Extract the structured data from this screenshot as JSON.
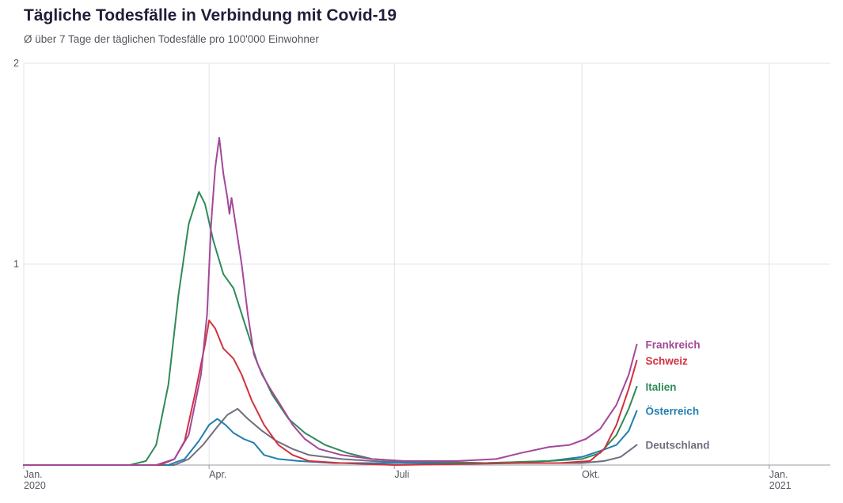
{
  "title": "Tägliche Todesfälle in Verbindung mit Covid-19",
  "subtitle": "Ø über 7 Tage der täglichen Todesfälle pro 100'000 Einwohner",
  "chart_data": {
    "type": "line",
    "title": "Tägliche Todesfälle in Verbindung mit Covid-19",
    "subtitle": "Ø über 7 Tage der täglichen Todesfälle pro 100'000 Einwohner",
    "xlabel": "",
    "ylabel": "",
    "xlim": [
      "2020-01-01",
      "2021-01-31"
    ],
    "ylim": [
      0,
      2
    ],
    "y_ticks": [
      {
        "value": 1,
        "label": "1"
      },
      {
        "value": 2,
        "label": "2"
      }
    ],
    "x_ticks": [
      {
        "date": "2020-01-01",
        "label": "Jan.",
        "sublabel": "2020"
      },
      {
        "date": "2020-04-01",
        "label": "Apr.",
        "sublabel": ""
      },
      {
        "date": "2020-07-01",
        "label": "Juli",
        "sublabel": ""
      },
      {
        "date": "2020-10-01",
        "label": "Okt.",
        "sublabel": ""
      },
      {
        "date": "2021-01-01",
        "label": "Jan.",
        "sublabel": "2021"
      }
    ],
    "grid": true,
    "legend": "labels at line ends (right)",
    "series": [
      {
        "name": "Frankreich",
        "color": "#a3489a",
        "points": [
          [
            "2020-01-01",
            0
          ],
          [
            "2020-03-06",
            0
          ],
          [
            "2020-03-15",
            0.03
          ],
          [
            "2020-03-22",
            0.15
          ],
          [
            "2020-03-28",
            0.45
          ],
          [
            "2020-03-31",
            0.75
          ],
          [
            "2020-04-02",
            1.2
          ],
          [
            "2020-04-04",
            1.48
          ],
          [
            "2020-04-06",
            1.63
          ],
          [
            "2020-04-08",
            1.45
          ],
          [
            "2020-04-10",
            1.33
          ],
          [
            "2020-04-11",
            1.25
          ],
          [
            "2020-04-12",
            1.33
          ],
          [
            "2020-04-14",
            1.2
          ],
          [
            "2020-04-17",
            1.0
          ],
          [
            "2020-04-20",
            0.75
          ],
          [
            "2020-04-23",
            0.55
          ],
          [
            "2020-04-27",
            0.45
          ],
          [
            "2020-05-01",
            0.38
          ],
          [
            "2020-05-06",
            0.3
          ],
          [
            "2020-05-12",
            0.2
          ],
          [
            "2020-05-18",
            0.13
          ],
          [
            "2020-05-25",
            0.08
          ],
          [
            "2020-06-05",
            0.05
          ],
          [
            "2020-06-20",
            0.03
          ],
          [
            "2020-07-05",
            0.02
          ],
          [
            "2020-08-01",
            0.02
          ],
          [
            "2020-08-20",
            0.03
          ],
          [
            "2020-09-01",
            0.06
          ],
          [
            "2020-09-15",
            0.09
          ],
          [
            "2020-09-25",
            0.1
          ],
          [
            "2020-10-03",
            0.13
          ],
          [
            "2020-10-10",
            0.18
          ],
          [
            "2020-10-18",
            0.3
          ],
          [
            "2020-10-24",
            0.45
          ],
          [
            "2020-10-28",
            0.6
          ]
        ]
      },
      {
        "name": "Schweiz",
        "color": "#d3313f",
        "points": [
          [
            "2020-01-01",
            0
          ],
          [
            "2020-03-08",
            0
          ],
          [
            "2020-03-15",
            0.03
          ],
          [
            "2020-03-20",
            0.12
          ],
          [
            "2020-03-25",
            0.35
          ],
          [
            "2020-03-30",
            0.6
          ],
          [
            "2020-04-01",
            0.72
          ],
          [
            "2020-04-04",
            0.68
          ],
          [
            "2020-04-08",
            0.58
          ],
          [
            "2020-04-13",
            0.53
          ],
          [
            "2020-04-17",
            0.45
          ],
          [
            "2020-04-22",
            0.32
          ],
          [
            "2020-04-28",
            0.2
          ],
          [
            "2020-05-05",
            0.1
          ],
          [
            "2020-05-12",
            0.05
          ],
          [
            "2020-05-20",
            0.02
          ],
          [
            "2020-06-05",
            0.01
          ],
          [
            "2020-07-01",
            0.0
          ],
          [
            "2020-09-01",
            0.01
          ],
          [
            "2020-09-20",
            0.01
          ],
          [
            "2020-10-05",
            0.02
          ],
          [
            "2020-10-12",
            0.08
          ],
          [
            "2020-10-18",
            0.2
          ],
          [
            "2020-10-24",
            0.38
          ],
          [
            "2020-10-28",
            0.52
          ]
        ]
      },
      {
        "name": "Italien",
        "color": "#2e8b57",
        "points": [
          [
            "2020-01-01",
            0
          ],
          [
            "2020-02-22",
            0
          ],
          [
            "2020-03-01",
            0.02
          ],
          [
            "2020-03-06",
            0.1
          ],
          [
            "2020-03-12",
            0.4
          ],
          [
            "2020-03-17",
            0.85
          ],
          [
            "2020-03-22",
            1.2
          ],
          [
            "2020-03-27",
            1.36
          ],
          [
            "2020-03-30",
            1.3
          ],
          [
            "2020-04-03",
            1.12
          ],
          [
            "2020-04-08",
            0.95
          ],
          [
            "2020-04-13",
            0.88
          ],
          [
            "2020-04-18",
            0.72
          ],
          [
            "2020-04-25",
            0.5
          ],
          [
            "2020-05-02",
            0.35
          ],
          [
            "2020-05-10",
            0.23
          ],
          [
            "2020-05-18",
            0.16
          ],
          [
            "2020-05-28",
            0.1
          ],
          [
            "2020-06-08",
            0.06
          ],
          [
            "2020-06-20",
            0.03
          ],
          [
            "2020-07-05",
            0.02
          ],
          [
            "2020-08-15",
            0.01
          ],
          [
            "2020-09-15",
            0.02
          ],
          [
            "2020-10-01",
            0.03
          ],
          [
            "2020-10-10",
            0.06
          ],
          [
            "2020-10-18",
            0.15
          ],
          [
            "2020-10-24",
            0.28
          ],
          [
            "2020-10-28",
            0.39
          ]
        ]
      },
      {
        "name": "Österreich",
        "color": "#1f7fb0",
        "points": [
          [
            "2020-01-01",
            0
          ],
          [
            "2020-03-12",
            0
          ],
          [
            "2020-03-20",
            0.03
          ],
          [
            "2020-03-27",
            0.12
          ],
          [
            "2020-04-01",
            0.2
          ],
          [
            "2020-04-05",
            0.23
          ],
          [
            "2020-04-09",
            0.2
          ],
          [
            "2020-04-13",
            0.16
          ],
          [
            "2020-04-18",
            0.13
          ],
          [
            "2020-04-23",
            0.11
          ],
          [
            "2020-04-28",
            0.05
          ],
          [
            "2020-05-05",
            0.03
          ],
          [
            "2020-05-15",
            0.02
          ],
          [
            "2020-06-01",
            0.01
          ],
          [
            "2020-08-15",
            0.01
          ],
          [
            "2020-09-15",
            0.02
          ],
          [
            "2020-10-01",
            0.04
          ],
          [
            "2020-10-10",
            0.07
          ],
          [
            "2020-10-18",
            0.1
          ],
          [
            "2020-10-24",
            0.17
          ],
          [
            "2020-10-28",
            0.27
          ]
        ]
      },
      {
        "name": "Deutschland",
        "color": "#6f6f80",
        "points": [
          [
            "2020-01-01",
            0
          ],
          [
            "2020-03-15",
            0
          ],
          [
            "2020-03-22",
            0.03
          ],
          [
            "2020-03-29",
            0.1
          ],
          [
            "2020-04-05",
            0.19
          ],
          [
            "2020-04-10",
            0.25
          ],
          [
            "2020-04-15",
            0.28
          ],
          [
            "2020-04-20",
            0.23
          ],
          [
            "2020-04-27",
            0.17
          ],
          [
            "2020-05-04",
            0.12
          ],
          [
            "2020-05-12",
            0.08
          ],
          [
            "2020-05-20",
            0.05
          ],
          [
            "2020-06-05",
            0.03
          ],
          [
            "2020-06-20",
            0.02
          ],
          [
            "2020-07-15",
            0.01
          ],
          [
            "2020-09-01",
            0.01
          ],
          [
            "2020-10-01",
            0.01
          ],
          [
            "2020-10-12",
            0.02
          ],
          [
            "2020-10-20",
            0.04
          ],
          [
            "2020-10-28",
            0.1
          ]
        ]
      }
    ]
  }
}
